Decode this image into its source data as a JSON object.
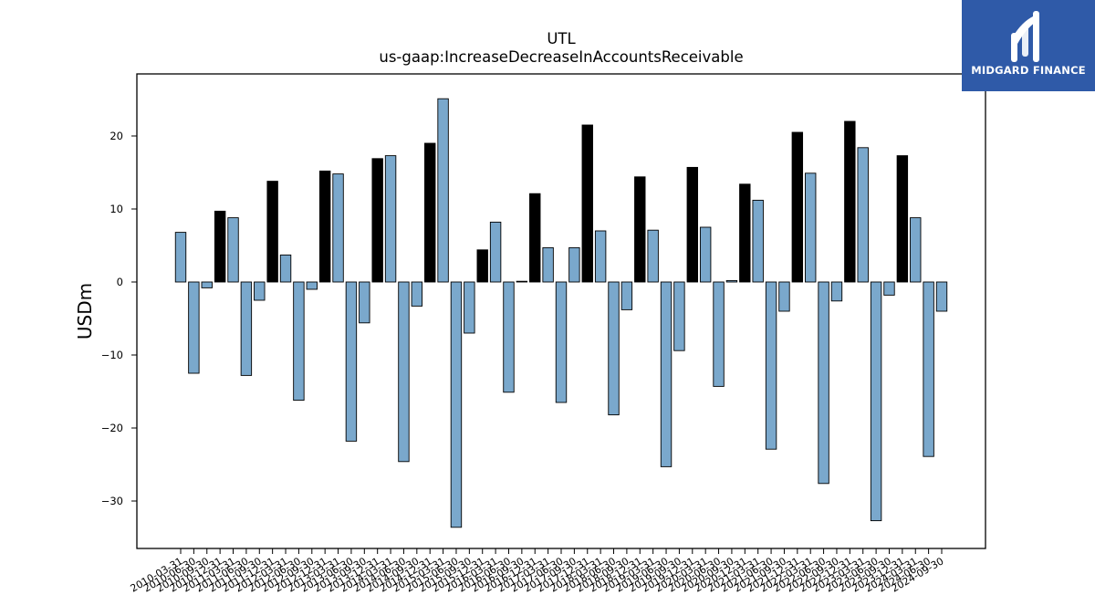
{
  "chart_data": {
    "type": "bar",
    "title": "UTL",
    "subtitle": "us-gaap:IncreaseDecreaseInAccountsReceivable",
    "ylabel": "USDm",
    "xlabel": "",
    "ylim": [
      -36.5,
      28.5
    ],
    "yticks": [
      20,
      10,
      0,
      -10,
      -20,
      -30
    ],
    "ytick_labels": [
      "20",
      "10",
      "0",
      "−10",
      "−20",
      "−30"
    ],
    "grid": false,
    "colors": {
      "default": "#7aa8cc",
      "highlight": "#000000",
      "edge": "#000000"
    },
    "categories": [
      "2010-03-31",
      "2010-06-30",
      "2010-09-30",
      "2010-12-31",
      "2011-03-31",
      "2011-06-30",
      "2011-09-30",
      "2011-12-31",
      "2012-03-31",
      "2012-06-30",
      "2012-09-30",
      "2012-12-31",
      "2013-03-31",
      "2013-06-30",
      "2013-09-30",
      "2013-12-31",
      "2014-03-31",
      "2014-06-30",
      "2014-09-30",
      "2014-12-31",
      "2015-03-31",
      "2015-06-30",
      "2015-09-30",
      "2015-12-31",
      "2016-03-31",
      "2016-06-30",
      "2016-09-30",
      "2016-12-31",
      "2017-03-31",
      "2017-06-30",
      "2017-09-30",
      "2017-12-31",
      "2018-03-31",
      "2018-06-30",
      "2018-09-30",
      "2018-12-31",
      "2019-03-31",
      "2019-06-30",
      "2019-09-30",
      "2019-12-31",
      "2020-03-31",
      "2020-06-30",
      "2020-09-30",
      "2020-12-31",
      "2021-03-31",
      "2021-06-30",
      "2021-09-30",
      "2021-12-31",
      "2022-03-31",
      "2022-06-30",
      "2022-09-30",
      "2022-12-31",
      "2023-03-31",
      "2023-06-30",
      "2023-09-30",
      "2023-12-31",
      "2024-03-31",
      "2024-06-30",
      "2024-09-30"
    ],
    "values": [
      6.8,
      -12.5,
      -0.8,
      9.7,
      8.8,
      -12.8,
      -2.5,
      13.8,
      3.7,
      -16.2,
      -1.0,
      15.2,
      14.8,
      -21.8,
      -5.6,
      16.9,
      17.3,
      -24.6,
      -3.3,
      19.0,
      25.1,
      -33.6,
      -7.0,
      4.4,
      8.2,
      -15.1,
      0.1,
      12.1,
      4.7,
      -16.5,
      4.7,
      21.5,
      7.0,
      -18.2,
      -3.8,
      14.4,
      7.1,
      -25.3,
      -9.4,
      15.7,
      7.5,
      -14.3,
      0.2,
      13.4,
      11.2,
      -22.9,
      -4.0,
      20.5,
      14.9,
      -27.6,
      -2.6,
      22.0,
      18.4,
      -32.7,
      -1.8,
      17.3,
      8.8,
      -23.9,
      -4.0
    ],
    "highlight": [
      false,
      false,
      false,
      true,
      false,
      false,
      false,
      true,
      false,
      false,
      false,
      true,
      false,
      false,
      false,
      true,
      false,
      false,
      false,
      true,
      false,
      false,
      false,
      true,
      false,
      false,
      false,
      true,
      false,
      false,
      false,
      true,
      false,
      false,
      false,
      true,
      false,
      false,
      false,
      true,
      false,
      false,
      false,
      true,
      false,
      false,
      false,
      true,
      false,
      false,
      false,
      true,
      false,
      false,
      false,
      true,
      false,
      false,
      false
    ]
  },
  "logo": {
    "text": "MIDGARD FINANCE",
    "icon": "midgard-logo-icon"
  }
}
